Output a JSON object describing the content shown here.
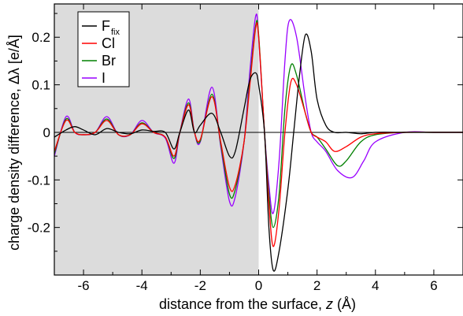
{
  "chart_data": {
    "type": "line",
    "title": "",
    "xlabel": "distance from the surface, z (Å)",
    "xlabel_prefix": "distance from the surface, ",
    "xlabel_var": "z",
    "xlabel_unit": " (Å)",
    "ylabel": "charge density difference, Δλ [e/Å]",
    "xlim": [
      -7,
      7
    ],
    "ylim": [
      -0.3,
      0.27
    ],
    "xticks": [
      -6,
      -4,
      -2,
      0,
      2,
      4,
      6
    ],
    "xtick_labels": [
      "-6",
      "-4",
      "-2",
      "0",
      "2",
      "4",
      "6"
    ],
    "yticks": [
      -0.2,
      -0.1,
      0,
      0.1,
      0.2
    ],
    "ytick_labels": [
      "-0.2",
      "-0.1",
      "0",
      "0.1",
      "0.2"
    ],
    "shaded_region": {
      "x": [
        -7,
        0
      ],
      "color": "#dcdcdc"
    },
    "grid": false,
    "legend_position": "top-left",
    "series": [
      {
        "name": "Ffix",
        "label_main": "F",
        "label_sub": "fix",
        "color": "#000000",
        "x": [
          -7,
          -6.6,
          -6.3,
          -6.0,
          -5.6,
          -5.2,
          -4.8,
          -4.4,
          -4.0,
          -3.6,
          -3.2,
          -2.9,
          -2.7,
          -2.4,
          -2.2,
          -2.0,
          -1.6,
          -1.3,
          -1.0,
          -0.8,
          -0.5,
          -0.3,
          -0.1,
          0.0,
          0.2,
          0.35,
          0.5,
          0.7,
          1.0,
          1.2,
          1.4,
          1.6,
          1.8,
          2.0,
          2.3,
          2.6,
          3.0,
          3.5,
          4.0,
          5.0,
          6.0,
          7.0
        ],
        "y": [
          -0.01,
          0.005,
          0.012,
          0.005,
          -0.005,
          0.008,
          0.0,
          -0.003,
          0.005,
          0.002,
          0.0,
          -0.035,
          0.0,
          0.047,
          0.0,
          0.015,
          0.04,
          0.0,
          -0.05,
          -0.04,
          0.05,
          0.11,
          0.125,
          0.1,
          0.0,
          -0.2,
          -0.29,
          -0.25,
          -0.12,
          0.0,
          0.12,
          0.205,
          0.17,
          0.07,
          0.015,
          0.0,
          0.0,
          -0.003,
          0.0,
          0.0,
          0.0,
          0.0
        ]
      },
      {
        "name": "Cl",
        "label_main": "Cl",
        "label_sub": "",
        "color": "#ff0000",
        "x": [
          -7,
          -6.6,
          -6.3,
          -6.0,
          -5.6,
          -5.2,
          -4.8,
          -4.4,
          -4.0,
          -3.6,
          -3.2,
          -2.9,
          -2.7,
          -2.4,
          -2.2,
          -2.0,
          -1.6,
          -1.3,
          -1.0,
          -0.8,
          -0.5,
          -0.3,
          -0.1,
          0.0,
          0.2,
          0.35,
          0.5,
          0.7,
          0.9,
          1.1,
          1.3,
          1.6,
          1.8,
          2.0,
          2.3,
          2.6,
          3.0,
          3.5,
          4.0,
          5.0,
          6.0,
          7.0
        ],
        "y": [
          -0.04,
          0.025,
          0.0,
          -0.005,
          0.0,
          0.025,
          -0.005,
          -0.005,
          0.018,
          0.0,
          -0.01,
          -0.05,
          0.0,
          0.058,
          0.0,
          -0.015,
          0.075,
          -0.02,
          -0.115,
          -0.11,
          -0.02,
          0.1,
          0.22,
          0.2,
          0.0,
          -0.15,
          -0.24,
          -0.16,
          0.0,
          0.105,
          0.1,
          0.04,
          0.0,
          -0.01,
          -0.02,
          -0.04,
          -0.03,
          -0.01,
          -0.003,
          0.0,
          0.0,
          0.0
        ]
      },
      {
        "name": "Br",
        "label_main": "Br",
        "label_sub": "",
        "color": "#008000",
        "x": [
          -7,
          -6.6,
          -6.3,
          -6.0,
          -5.6,
          -5.2,
          -4.8,
          -4.4,
          -4.0,
          -3.6,
          -3.2,
          -2.9,
          -2.7,
          -2.4,
          -2.2,
          -2.0,
          -1.6,
          -1.3,
          -1.0,
          -0.8,
          -0.5,
          -0.3,
          -0.1,
          0.0,
          0.2,
          0.35,
          0.5,
          0.7,
          0.9,
          1.1,
          1.3,
          1.6,
          1.8,
          2.0,
          2.3,
          2.7,
          3.0,
          3.5,
          4.0,
          5.0,
          6.0,
          7.0
        ],
        "y": [
          -0.045,
          0.028,
          0.0,
          -0.005,
          0.0,
          0.028,
          -0.005,
          -0.005,
          0.02,
          0.0,
          -0.01,
          -0.055,
          0.0,
          0.062,
          0.0,
          -0.018,
          0.08,
          -0.025,
          -0.13,
          -0.12,
          -0.02,
          0.11,
          0.225,
          0.205,
          0.0,
          -0.13,
          -0.2,
          -0.13,
          0.05,
          0.14,
          0.12,
          0.04,
          0.0,
          -0.01,
          -0.035,
          -0.07,
          -0.06,
          -0.02,
          -0.005,
          0.0,
          0.0,
          0.0
        ]
      },
      {
        "name": "I",
        "label_main": "I",
        "label_sub": "",
        "color": "#9900ff",
        "x": [
          -7,
          -6.6,
          -6.3,
          -6.0,
          -5.6,
          -5.2,
          -4.8,
          -4.4,
          -4.0,
          -3.6,
          -3.2,
          -2.9,
          -2.7,
          -2.4,
          -2.2,
          -2.0,
          -1.6,
          -1.3,
          -1.0,
          -0.8,
          -0.5,
          -0.3,
          -0.1,
          0.0,
          0.2,
          0.35,
          0.5,
          0.7,
          0.9,
          1.05,
          1.3,
          1.6,
          1.8,
          2.0,
          2.3,
          2.7,
          3.2,
          3.6,
          4.0,
          5.0,
          6.0,
          7.0
        ],
        "y": [
          -0.05,
          0.033,
          0.0,
          -0.005,
          0.0,
          0.033,
          -0.005,
          -0.005,
          0.025,
          0.0,
          -0.012,
          -0.065,
          0.0,
          0.07,
          0.0,
          -0.02,
          0.095,
          -0.03,
          -0.145,
          -0.135,
          -0.02,
          0.13,
          0.245,
          0.2,
          0.0,
          -0.11,
          -0.17,
          -0.06,
          0.15,
          0.235,
          0.2,
          0.07,
          0.0,
          -0.02,
          -0.04,
          -0.08,
          -0.095,
          -0.06,
          -0.02,
          0.0,
          0.0,
          0.0
        ]
      }
    ]
  }
}
